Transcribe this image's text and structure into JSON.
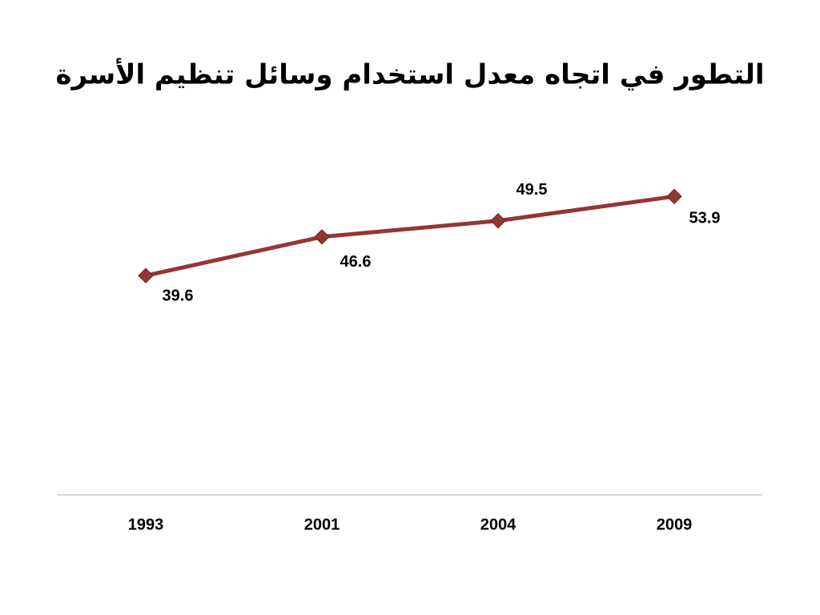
{
  "chart_data": {
    "type": "line",
    "title": "التطور في اتجاه معدل استخدام وسائل تنظيم الأسرة",
    "categories": [
      "1993",
      "2001",
      "2004",
      "2009"
    ],
    "values": [
      39.6,
      46.6,
      49.5,
      53.9
    ],
    "color": "#943634",
    "ylim": [
      0,
      70
    ]
  }
}
